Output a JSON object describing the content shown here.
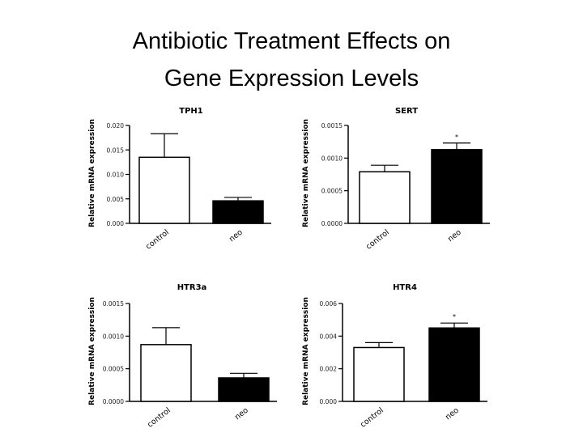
{
  "slide": {
    "title_line1": "Antibiotic Treatment Effects on",
    "title_line2": "Gene Expression Levels"
  },
  "chart_data": [
    {
      "type": "bar",
      "title": "TPH1",
      "ylabel": "Relative mRNA expression",
      "categories": [
        "control",
        "neo"
      ],
      "values": [
        0.0135,
        0.0046
      ],
      "errors": [
        0.0048,
        0.0007
      ],
      "bar_colors": [
        "#ffffff",
        "#000000"
      ],
      "significance": [
        "",
        ""
      ],
      "ylim": [
        0,
        0.02
      ],
      "yticks": [
        "0.000",
        "0.005",
        "0.010",
        "0.015",
        "0.020"
      ]
    },
    {
      "type": "bar",
      "title": "SERT",
      "ylabel": "Relative mRNA expression",
      "categories": [
        "control",
        "neo"
      ],
      "values": [
        0.00079,
        0.00113
      ],
      "errors": [
        0.0001,
        0.0001
      ],
      "bar_colors": [
        "#ffffff",
        "#000000"
      ],
      "significance": [
        "",
        "*"
      ],
      "ylim": [
        0,
        0.0015
      ],
      "yticks": [
        "0.0000",
        "0.0005",
        "0.0010",
        "0.0015"
      ]
    },
    {
      "type": "bar",
      "title": "HTR3a",
      "ylabel": "Relative mRNA expression",
      "categories": [
        "control",
        "neo"
      ],
      "values": [
        0.00087,
        0.00036
      ],
      "errors": [
        0.00026,
        7e-05
      ],
      "bar_colors": [
        "#ffffff",
        "#000000"
      ],
      "significance": [
        "",
        ""
      ],
      "ylim": [
        0,
        0.0015
      ],
      "yticks": [
        "0.0000",
        "0.0005",
        "0.0010",
        "0.0015"
      ]
    },
    {
      "type": "bar",
      "title": "HTR4",
      "ylabel": "Relative mRNA expression",
      "categories": [
        "control",
        "neo"
      ],
      "values": [
        0.0033,
        0.0045
      ],
      "errors": [
        0.0003,
        0.0003
      ],
      "bar_colors": [
        "#ffffff",
        "#000000"
      ],
      "significance": [
        "",
        "*"
      ],
      "ylim": [
        0,
        0.006
      ],
      "yticks": [
        "0.000",
        "0.002",
        "0.004",
        "0.006"
      ]
    }
  ]
}
